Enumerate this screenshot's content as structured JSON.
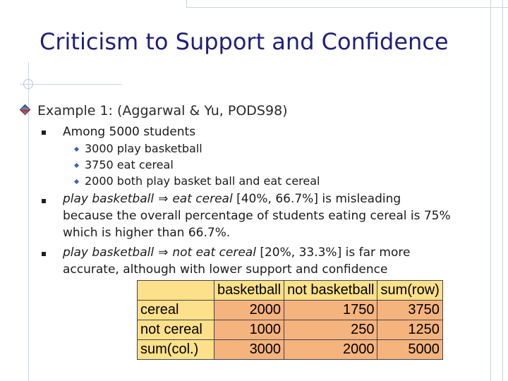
{
  "slide": {
    "title": "Criticism to Support and Confidence",
    "example": "Example 1: (Aggarwal & Yu, PODS98)",
    "bullets": {
      "b1": "Among 5000 students",
      "b1_sub": [
        "3000 play basketball",
        "3750 eat cereal",
        "2000 both play basket ball and eat cereal"
      ],
      "b2_lhs": "play basketball",
      "b2_arrow": "⇒",
      "b2_rhs": "eat cereal",
      "b2_rest": " [40%, 66.7%]  is misleading",
      "b2_line2": "because the overall percentage of students eating cereal is 75%",
      "b2_line3": "which is higher than 66.7%.",
      "b3_lhs": "play basketball",
      "b3_arrow": "⇒",
      "b3_rhs": "not eat cereal",
      "b3_rest": " [20%, 33.3%] is far more",
      "b3_line2": "accurate, although with lower support and confidence"
    }
  },
  "table": {
    "headers": [
      "",
      "basketball",
      "not basketball",
      "sum(row)"
    ],
    "rows": [
      [
        "cereal",
        "2000",
        "1750",
        "3750"
      ],
      [
        "not cereal",
        "1000",
        "250",
        "1250"
      ],
      [
        "sum(col.)",
        "3000",
        "2000",
        "5000"
      ]
    ]
  }
}
